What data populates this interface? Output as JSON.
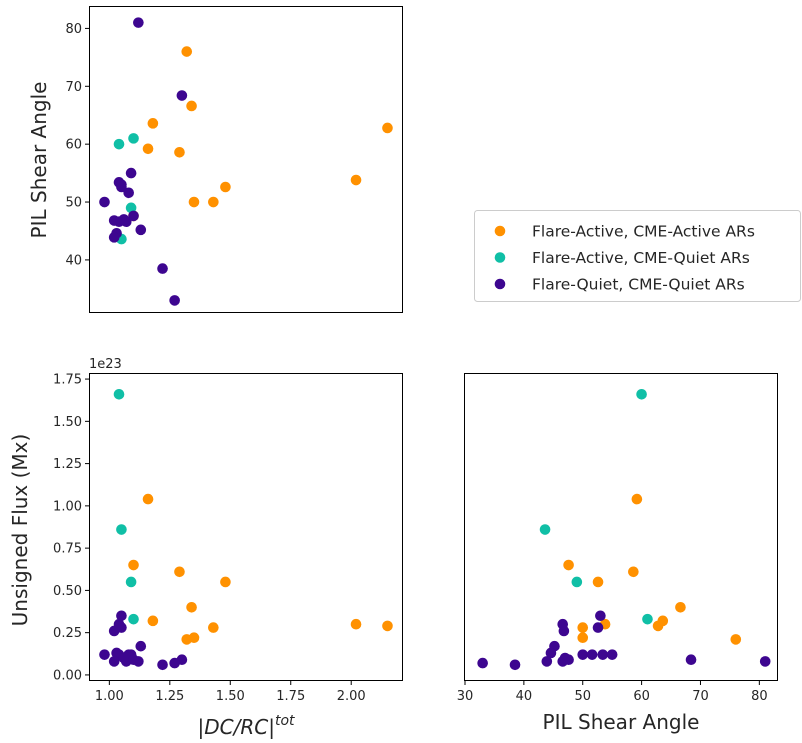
{
  "chart_data": {
    "type": "scatter",
    "legend": {
      "placement": "right",
      "entries": [
        {
          "label": "Flare-Active, CME-Active ARs",
          "color": "#ff9100"
        },
        {
          "label": "Flare-Active, CME-Quiet ARs",
          "color": "#10bfa6"
        },
        {
          "label": "Flare-Quiet, CME-Quiet ARs",
          "color": "#3d0690"
        }
      ]
    },
    "panels": [
      {
        "id": "top-left",
        "x_field": "dcrc",
        "y_field": "shear",
        "xlim": [
          0.92,
          2.21
        ],
        "ylim": [
          31.0,
          83.7
        ],
        "xticks": [],
        "yticks": [
          40,
          50,
          60,
          70,
          80
        ],
        "xlabel": "",
        "ylabel": "PIL Shear Angle",
        "offset_text": ""
      },
      {
        "id": "bottom-left",
        "x_field": "dcrc",
        "y_field": "flux",
        "xlim": [
          0.92,
          2.21
        ],
        "ylim": [
          -0.03,
          1.78
        ],
        "xticks": [
          1.0,
          1.25,
          1.5,
          1.75,
          2.0
        ],
        "yticks": [
          0.0,
          0.25,
          0.5,
          0.75,
          1.0,
          1.25,
          1.5,
          1.75
        ],
        "xlabel": "|DC/RC|",
        "xlabel_sup": "tot",
        "ylabel": "Unsigned Flux (Mx)",
        "offset_text": "1e23"
      },
      {
        "id": "bottom-right",
        "x_field": "shear",
        "y_field": "flux",
        "xlim": [
          30,
          83
        ],
        "ylim": [
          -0.03,
          1.78
        ],
        "xticks": [
          30,
          40,
          50,
          60,
          70,
          80
        ],
        "yticks": [],
        "xlabel": "PIL Shear Angle",
        "ylabel": "",
        "offset_text": ""
      }
    ],
    "series": [
      {
        "name": "Flare-Active, CME-Active ARs",
        "color": "#ff9100",
        "points": [
          {
            "dcrc": 1.32,
            "shear": 76.0,
            "flux": 0.21
          },
          {
            "dcrc": 1.34,
            "shear": 66.6,
            "flux": 0.4
          },
          {
            "dcrc": 1.18,
            "shear": 63.6,
            "flux": 0.32
          },
          {
            "dcrc": 2.15,
            "shear": 62.8,
            "flux": 0.29
          },
          {
            "dcrc": 1.16,
            "shear": 59.2,
            "flux": 1.04
          },
          {
            "dcrc": 1.29,
            "shear": 58.6,
            "flux": 0.61
          },
          {
            "dcrc": 2.02,
            "shear": 53.8,
            "flux": 0.3
          },
          {
            "dcrc": 1.48,
            "shear": 52.6,
            "flux": 0.55
          },
          {
            "dcrc": 1.35,
            "shear": 50.0,
            "flux": 0.22
          },
          {
            "dcrc": 1.43,
            "shear": 50.0,
            "flux": 0.28
          },
          {
            "dcrc": 1.1,
            "shear": 47.6,
            "flux": 0.65
          }
        ]
      },
      {
        "name": "Flare-Active, CME-Quiet ARs",
        "color": "#10bfa6",
        "points": [
          {
            "dcrc": 1.1,
            "shear": 61.0,
            "flux": 0.33
          },
          {
            "dcrc": 1.04,
            "shear": 60.0,
            "flux": 1.66
          },
          {
            "dcrc": 1.09,
            "shear": 49.0,
            "flux": 0.55
          },
          {
            "dcrc": 1.05,
            "shear": 43.6,
            "flux": 0.86
          }
        ]
      },
      {
        "name": "Flare-Quiet, CME-Quiet ARs",
        "color": "#3d0690",
        "points": [
          {
            "dcrc": 1.12,
            "shear": 81.0,
            "flux": 0.08
          },
          {
            "dcrc": 1.3,
            "shear": 68.4,
            "flux": 0.09
          },
          {
            "dcrc": 1.09,
            "shear": 55.0,
            "flux": 0.12
          },
          {
            "dcrc": 1.04,
            "shear": 53.4,
            "flux": 0.12
          },
          {
            "dcrc": 1.05,
            "shear": 52.6,
            "flux": 0.28
          },
          {
            "dcrc": 1.08,
            "shear": 51.6,
            "flux": 0.12
          },
          {
            "dcrc": 0.98,
            "shear": 50.0,
            "flux": 0.12
          },
          {
            "dcrc": 1.02,
            "shear": 46.8,
            "flux": 0.26
          },
          {
            "dcrc": 1.04,
            "shear": 46.6,
            "flux": 0.3
          },
          {
            "dcrc": 1.07,
            "shear": 46.6,
            "flux": 0.08
          },
          {
            "dcrc": 1.13,
            "shear": 45.2,
            "flux": 0.17
          },
          {
            "dcrc": 1.03,
            "shear": 44.6,
            "flux": 0.13
          },
          {
            "dcrc": 1.02,
            "shear": 43.9,
            "flux": 0.08
          },
          {
            "dcrc": 1.22,
            "shear": 38.5,
            "flux": 0.06
          },
          {
            "dcrc": 1.27,
            "shear": 33.0,
            "flux": 0.07
          },
          {
            "dcrc": 1.05,
            "shear": 53.0,
            "flux": 0.35
          },
          {
            "dcrc": 1.06,
            "shear": 47.0,
            "flux": 0.1
          },
          {
            "dcrc": 1.1,
            "shear": 47.6,
            "flux": 0.09
          }
        ]
      }
    ]
  }
}
